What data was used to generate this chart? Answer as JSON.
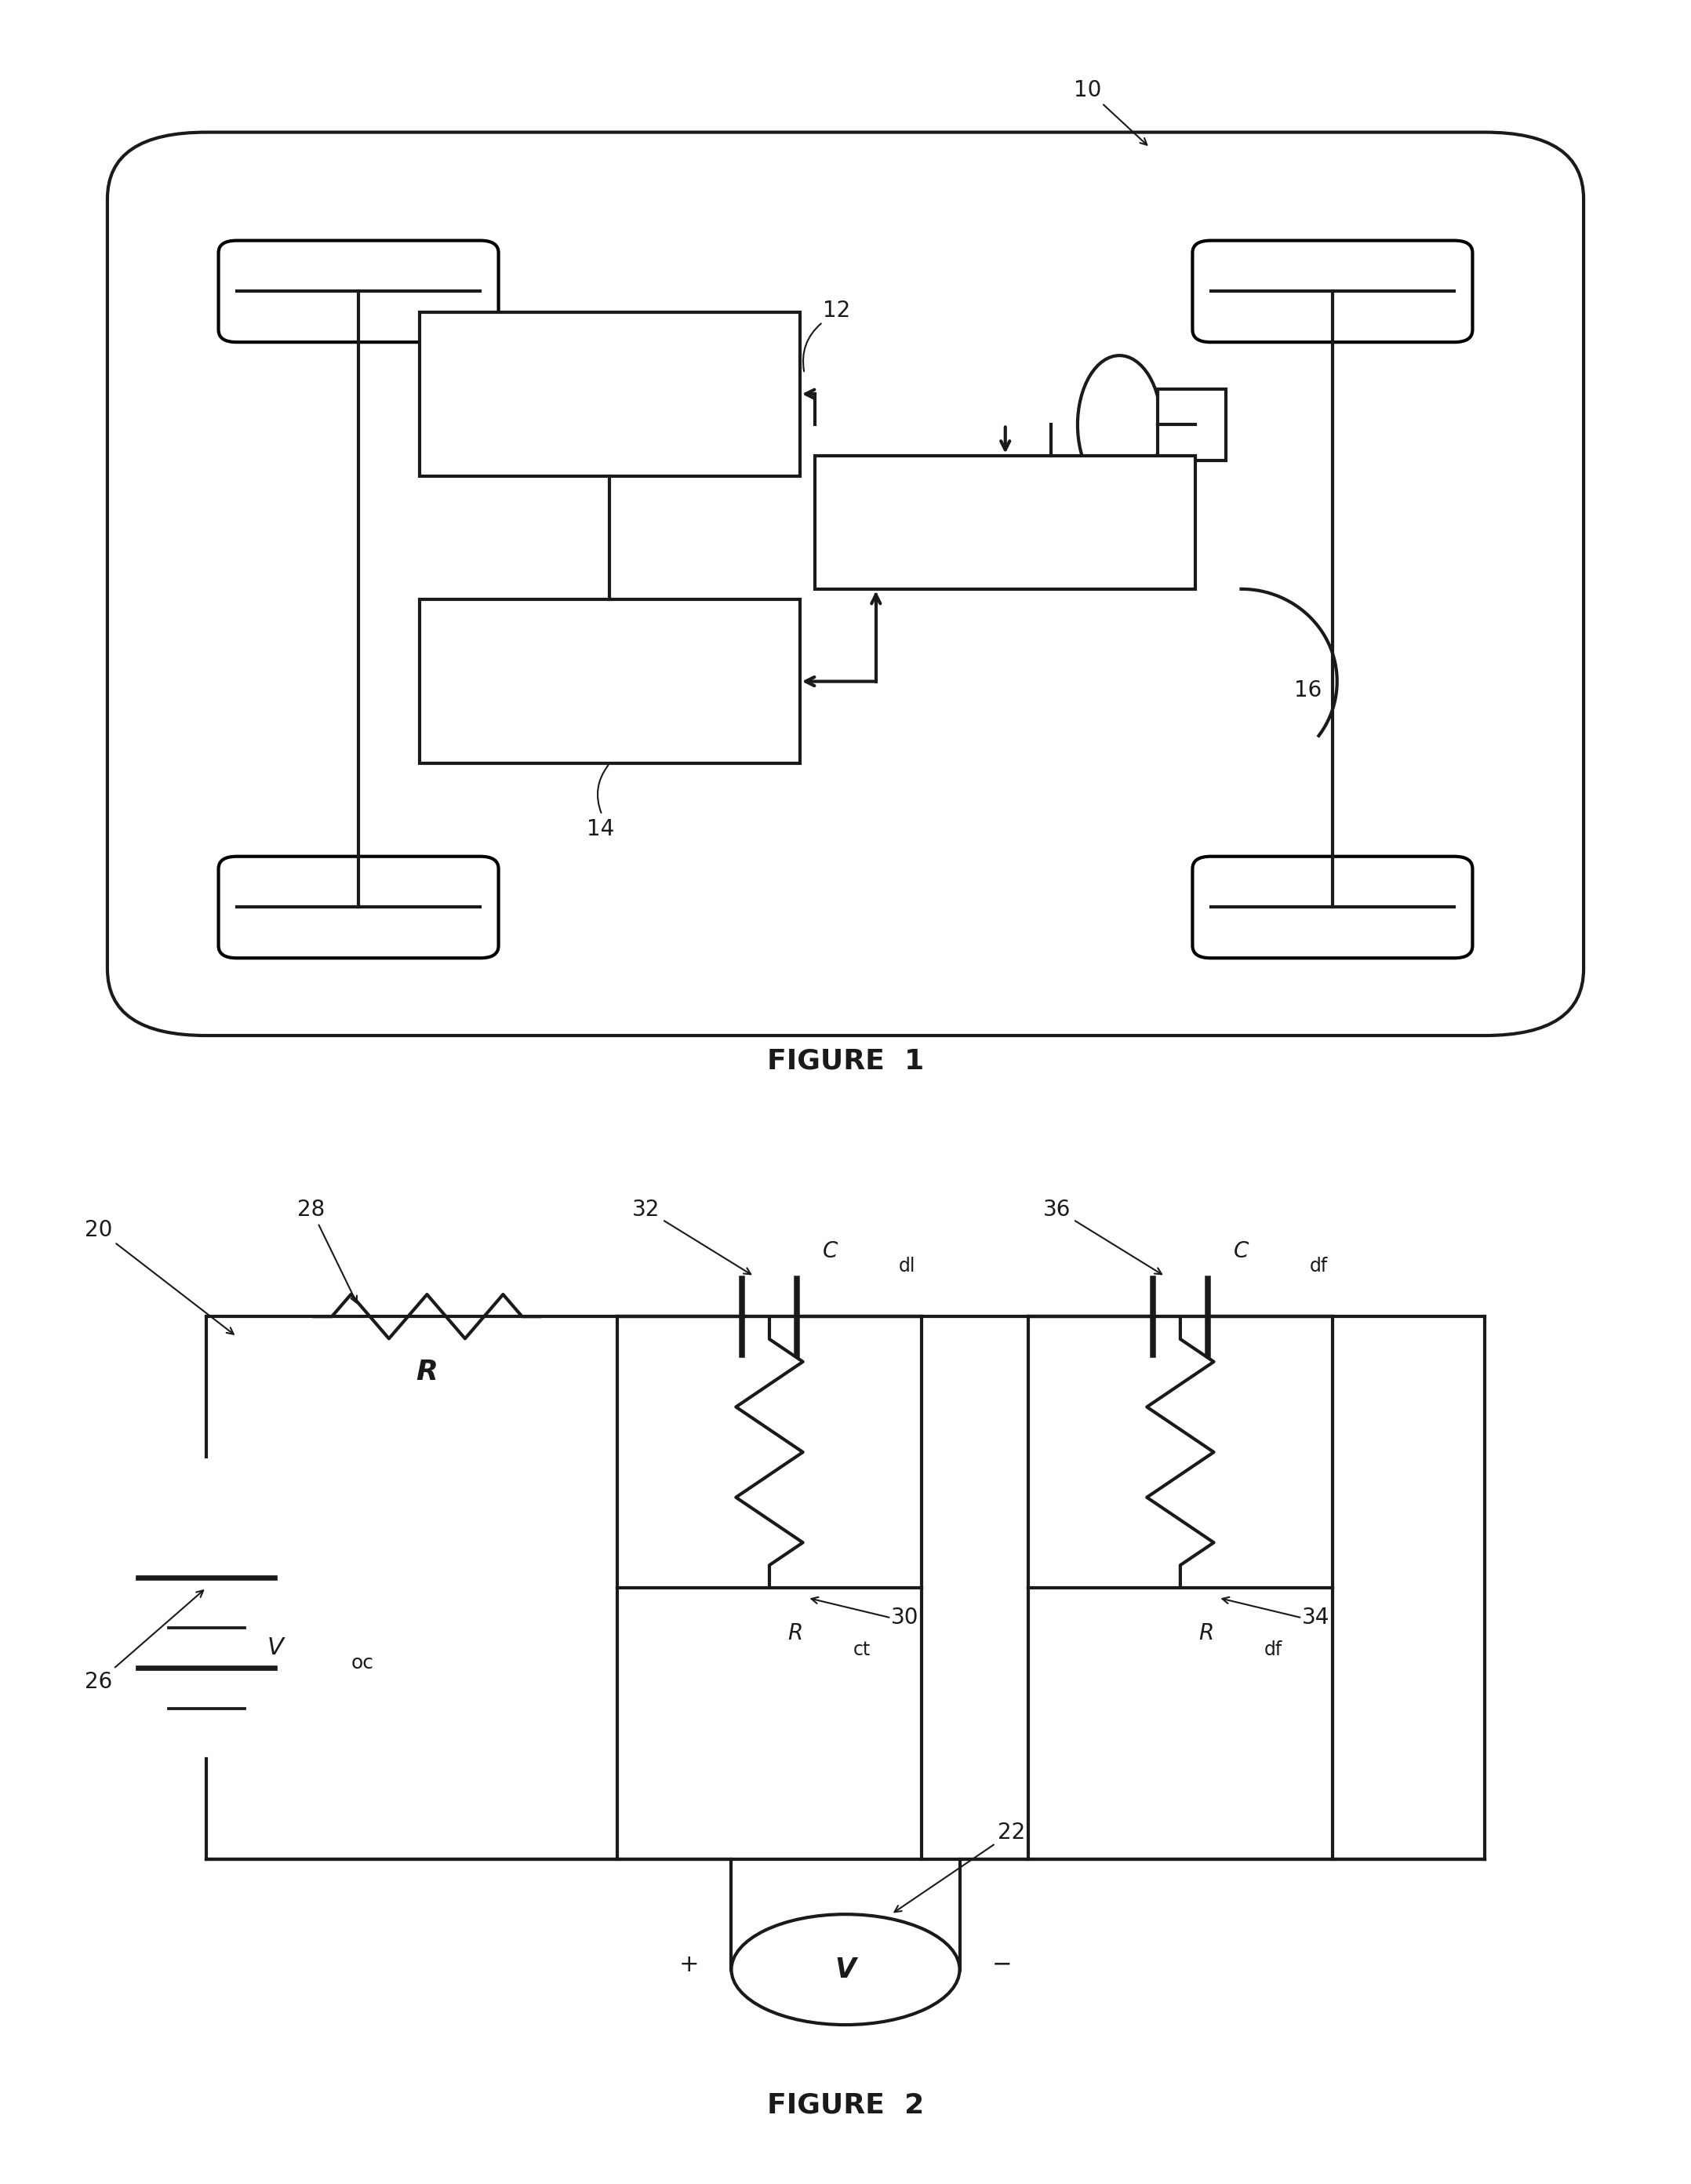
{
  "fig1": {
    "title": "FIGURE  1",
    "label_10": "10",
    "label_12": "12",
    "label_14": "14",
    "label_16": "16"
  },
  "fig2": {
    "title": "FIGURE  2",
    "label_20": "20",
    "label_22": "22",
    "label_26": "26",
    "label_28": "28",
    "label_30": "30",
    "label_32": "32",
    "label_34": "34",
    "label_36": "36",
    "R_label": "R",
    "Voc_label": "V",
    "Voc_sub": "oc",
    "Rct_label": "R",
    "Rct_sub": "ct",
    "Rdf_label": "R",
    "Rdf_sub": "df",
    "Cdl_label": "C",
    "Cdl_sub": "dl",
    "Cdf_label": "C",
    "Cdf_sub": "df",
    "V_label": "V"
  },
  "bg_color": "#ffffff",
  "line_color": "#1a1a1a",
  "line_width": 3.0,
  "font_size_label": 20,
  "font_size_title": 26,
  "font_size_number": 20
}
